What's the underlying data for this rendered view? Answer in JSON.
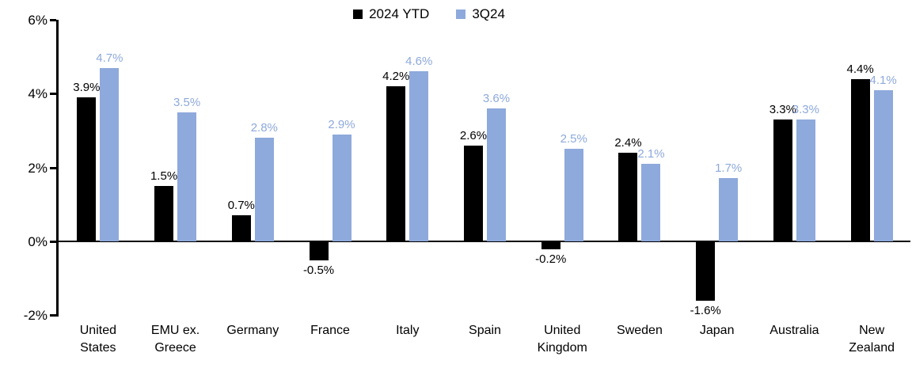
{
  "chart_data": {
    "type": "bar",
    "title": "",
    "categories": [
      "United States",
      "EMU ex. Greece",
      "Germany",
      "France",
      "Italy",
      "Spain",
      "United Kingdom",
      "Sweden",
      "Japan",
      "Australia",
      "New Zealand"
    ],
    "category_label_lines": [
      [
        "United",
        "States"
      ],
      [
        "EMU ex.",
        "Greece"
      ],
      [
        "Germany"
      ],
      [
        "France"
      ],
      [
        "Italy"
      ],
      [
        "Spain"
      ],
      [
        "United",
        "Kingdom"
      ],
      [
        "Sweden"
      ],
      [
        "Japan"
      ],
      [
        "Australia"
      ],
      [
        "New",
        "Zealand"
      ]
    ],
    "series": [
      {
        "name": "2024 YTD",
        "color": "#000000",
        "values": [
          3.9,
          1.5,
          0.7,
          -0.5,
          4.2,
          2.6,
          -0.2,
          2.4,
          -1.6,
          3.3,
          4.4
        ],
        "labels": [
          "3.9%",
          "1.5%",
          "0.7%",
          "-0.5%",
          "4.2%",
          "2.6%",
          "-0.2%",
          "2.4%",
          "-1.6%",
          "3.3%",
          "4.4%"
        ]
      },
      {
        "name": "3Q24",
        "color": "#8EA9DB",
        "values": [
          4.7,
          3.5,
          2.8,
          2.9,
          4.6,
          3.6,
          2.5,
          2.1,
          1.7,
          3.3,
          4.1
        ],
        "labels": [
          "4.7%",
          "3.5%",
          "2.8%",
          "2.9%",
          "4.6%",
          "3.6%",
          "2.5%",
          "2.1%",
          "1.7%",
          "3.3%",
          "4.1%"
        ]
      }
    ],
    "ylim": [
      -2,
      6
    ],
    "yticks": [
      {
        "value": 6,
        "label": "6%"
      },
      {
        "value": 4,
        "label": "4%"
      },
      {
        "value": 2,
        "label": "2%"
      },
      {
        "value": 0,
        "label": "0%"
      },
      {
        "value": -2,
        "label": "-2%"
      }
    ],
    "legend_position": "top-center",
    "grid": false,
    "axis_color": "#000000"
  }
}
